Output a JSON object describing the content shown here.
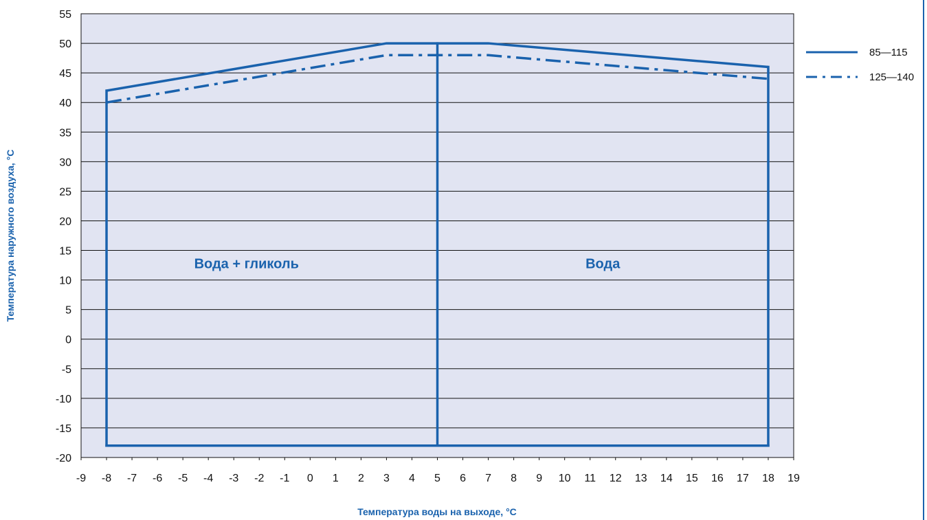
{
  "chart_data": {
    "type": "line",
    "title": "",
    "xlabel": "Температура воды на выходе, °C",
    "ylabel": "Температура наружного воздуха, °C",
    "xlim": [
      -9,
      19
    ],
    "ylim": [
      -20,
      55
    ],
    "x_ticks": [
      -9,
      -8,
      -7,
      -6,
      -5,
      -4,
      -3,
      -2,
      -1,
      0,
      1,
      2,
      3,
      4,
      5,
      6,
      7,
      8,
      9,
      10,
      11,
      12,
      13,
      14,
      15,
      16,
      17,
      18,
      19
    ],
    "y_ticks": [
      55,
      50,
      45,
      40,
      35,
      30,
      25,
      20,
      15,
      10,
      5,
      0,
      -5,
      -10,
      -15,
      -20
    ],
    "grid": "horizontal",
    "legend_position": "right",
    "series": [
      {
        "name": "85—115",
        "style": "solid",
        "x": [
          -8,
          3,
          7,
          18
        ],
        "y": [
          42,
          50,
          50,
          46
        ]
      },
      {
        "name": "125—140",
        "style": "dash-dot",
        "x": [
          -8,
          3,
          7,
          18
        ],
        "y": [
          40,
          48,
          48,
          44
        ]
      }
    ],
    "boundaries": {
      "bottom_y": -18,
      "left_x": -8,
      "divider_x": 5,
      "right_x": 18
    },
    "regions": [
      {
        "label": "Вода + гликоль",
        "x": -2.5,
        "y": 12
      },
      {
        "label": "Вода",
        "x": 11.5,
        "y": 12
      }
    ],
    "colors": {
      "line": "#1a62ad",
      "plot_background": "#e1e4f2",
      "grid": "#111111",
      "text": "#111111"
    }
  }
}
